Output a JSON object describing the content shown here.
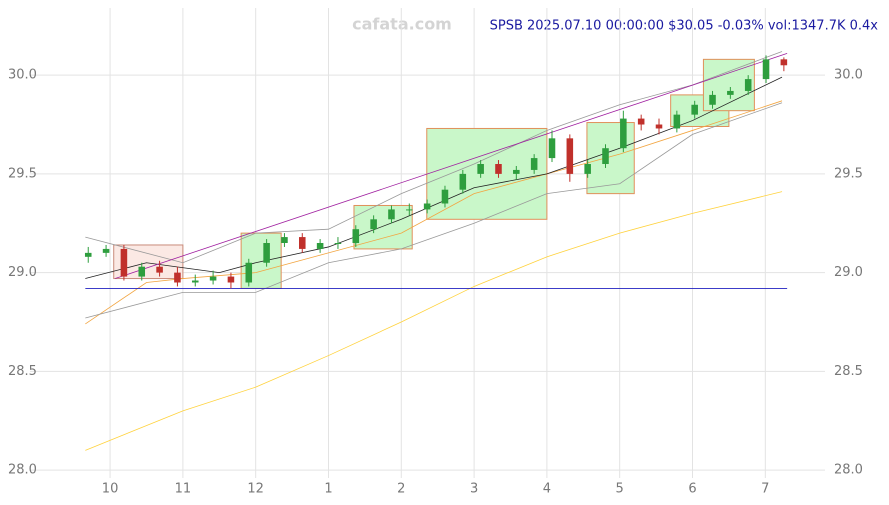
{
  "chart_data": {
    "type": "candlestick",
    "title": "SPSB 2025.07.10 00:00:00 $30.05 -0.03% vol:1347.7K 0.4x",
    "watermark": "cafata.com",
    "x": [
      -0.3,
      -0.055,
      0.19,
      0.435,
      0.68,
      0.925,
      1.17,
      1.415,
      1.66,
      1.905,
      2.15,
      2.395,
      2.64,
      2.885,
      3.13,
      3.375,
      3.62,
      3.865,
      4.11,
      4.355,
      4.6,
      4.845,
      5.09,
      5.335,
      5.58,
      5.825,
      6.07,
      6.315,
      6.56,
      6.805,
      7.05,
      7.295,
      7.54,
      7.785,
      8.03,
      8.275,
      8.52,
      8.765,
      9.01,
      9.255
    ],
    "open": [
      29.08,
      29.1,
      29.12,
      28.98,
      29.03,
      29.0,
      28.95,
      28.96,
      28.98,
      28.95,
      29.05,
      29.15,
      29.18,
      29.12,
      29.15,
      29.15,
      29.22,
      29.27,
      29.32,
      29.32,
      29.35,
      29.42,
      29.5,
      29.55,
      29.5,
      29.52,
      29.58,
      29.68,
      29.5,
      29.55,
      29.63,
      29.78,
      29.75,
      29.73,
      29.8,
      29.85,
      29.9,
      29.92,
      29.98,
      30.08
    ],
    "high": [
      29.13,
      29.14,
      29.14,
      29.05,
      29.06,
      29.03,
      28.99,
      29.01,
      29.0,
      29.07,
      29.17,
      29.2,
      29.2,
      29.17,
      29.18,
      29.24,
      29.29,
      29.34,
      29.35,
      29.37,
      29.44,
      29.52,
      29.57,
      29.57,
      29.54,
      29.6,
      29.72,
      29.7,
      29.57,
      29.65,
      29.82,
      29.8,
      29.78,
      29.82,
      29.87,
      29.92,
      29.94,
      30.0,
      30.1,
      30.09
    ],
    "low": [
      29.05,
      29.08,
      28.96,
      28.96,
      28.98,
      28.93,
      28.93,
      28.94,
      28.92,
      28.93,
      29.03,
      29.13,
      29.1,
      29.1,
      29.12,
      29.13,
      29.2,
      29.25,
      29.29,
      29.3,
      29.33,
      29.4,
      29.48,
      29.48,
      29.47,
      29.5,
      29.56,
      29.46,
      29.48,
      29.53,
      29.61,
      29.72,
      29.7,
      29.71,
      29.78,
      29.83,
      29.88,
      29.9,
      29.96,
      30.02
    ],
    "close": [
      29.1,
      29.12,
      28.98,
      29.03,
      29.0,
      28.95,
      28.96,
      28.98,
      28.95,
      29.05,
      29.15,
      29.18,
      29.12,
      29.15,
      29.15,
      29.22,
      29.27,
      29.32,
      29.32,
      29.35,
      29.42,
      29.5,
      29.55,
      29.5,
      29.52,
      29.58,
      29.68,
      29.5,
      29.55,
      29.63,
      29.78,
      29.75,
      29.73,
      29.8,
      29.85,
      29.9,
      29.92,
      29.98,
      30.08,
      30.05
    ],
    "up_color": "#2e9e3e",
    "down_color": "#c0302b",
    "lines": [
      {
        "color": "#ffd23c",
        "x": [
          -0.34,
          1,
          2,
          3,
          4,
          5,
          6,
          7,
          8,
          9.23
        ],
        "values": [
          28.1,
          28.3,
          28.42,
          28.58,
          28.75,
          28.93,
          29.08,
          29.2,
          29.3,
          29.41
        ]
      },
      {
        "color": "#f2a541",
        "x": [
          -0.34,
          0.5,
          1,
          2,
          3,
          4,
          5,
          6,
          7,
          8,
          9.23
        ],
        "values": [
          28.74,
          28.95,
          28.97,
          29.0,
          29.1,
          29.2,
          29.4,
          29.5,
          29.6,
          29.72,
          29.87
        ]
      },
      {
        "color": "#222222",
        "x": [
          -0.34,
          0.5,
          1.5,
          2,
          3,
          4,
          5,
          6,
          7,
          8,
          9.23
        ],
        "values": [
          28.97,
          29.05,
          29.0,
          29.05,
          29.13,
          29.27,
          29.43,
          29.5,
          29.63,
          29.77,
          29.99
        ]
      },
      {
        "color": "#999999",
        "x": [
          -0.34,
          1,
          2,
          3,
          4,
          5,
          6,
          7,
          8,
          9.23
        ],
        "values": [
          29.18,
          29.05,
          29.2,
          29.22,
          29.4,
          29.55,
          29.72,
          29.85,
          29.95,
          30.12
        ]
      },
      {
        "color": "#999999",
        "x": [
          -0.34,
          1,
          2,
          3,
          4,
          5,
          6,
          7,
          8,
          9.23
        ],
        "values": [
          28.77,
          28.9,
          28.9,
          29.05,
          29.12,
          29.25,
          29.4,
          29.45,
          29.7,
          29.86
        ]
      },
      {
        "color": "#a020a0",
        "x": [
          0.07,
          9.3
        ],
        "values": [
          28.97,
          30.11
        ]
      },
      {
        "color": "#2020c0",
        "x": [
          -0.34,
          9.3
        ],
        "values": [
          28.92,
          28.92
        ]
      }
    ],
    "boxes": [
      {
        "x": [
          0.05,
          1.0
        ],
        "y": [
          28.97,
          29.14
        ],
        "fill": "#fbe9e4",
        "stroke": "#c98a7a"
      },
      {
        "x": [
          1.8,
          2.35
        ],
        "y": [
          28.92,
          29.2
        ],
        "fill": "#c9f7c9",
        "stroke": "#e0905a"
      },
      {
        "x": [
          3.35,
          4.15
        ],
        "y": [
          29.12,
          29.34
        ],
        "fill": "#c9f7c9",
        "stroke": "#e0905a"
      },
      {
        "x": [
          4.35,
          6.0
        ],
        "y": [
          29.27,
          29.73
        ],
        "fill": "#c9f7c9",
        "stroke": "#e0905a"
      },
      {
        "x": [
          6.55,
          7.2
        ],
        "y": [
          29.4,
          29.76
        ],
        "fill": "#c9f7c9",
        "stroke": "#e0905a"
      },
      {
        "x": [
          7.7,
          8.5
        ],
        "y": [
          29.74,
          29.9
        ],
        "fill": "#c9f7c9",
        "stroke": "#e0905a"
      },
      {
        "x": [
          8.15,
          8.85
        ],
        "y": [
          29.82,
          30.08
        ],
        "fill": "#c9f7c9",
        "stroke": "#e0905a"
      }
    ],
    "xlim": [
      -1.1,
      9.82
    ],
    "xticks": [
      {
        "value": 0,
        "label": "10"
      },
      {
        "value": 1,
        "label": "11"
      },
      {
        "value": 2,
        "label": "12"
      },
      {
        "value": 3,
        "label": "1"
      },
      {
        "value": 4,
        "label": "2"
      },
      {
        "value": 5,
        "label": "3"
      },
      {
        "value": 6,
        "label": "4"
      },
      {
        "value": 7,
        "label": "5"
      },
      {
        "value": 8,
        "label": "6"
      },
      {
        "value": 9,
        "label": "7"
      }
    ],
    "ylim": [
      27.96,
      30.34
    ],
    "yticks": [
      {
        "value": 28,
        "label": "28.0"
      },
      {
        "value": 28.5,
        "label": "28.5"
      },
      {
        "value": 29,
        "label": "29.0"
      },
      {
        "value": 29.5,
        "label": "29.5"
      },
      {
        "value": 30,
        "label": "30.0"
      }
    ],
    "grid": true
  }
}
